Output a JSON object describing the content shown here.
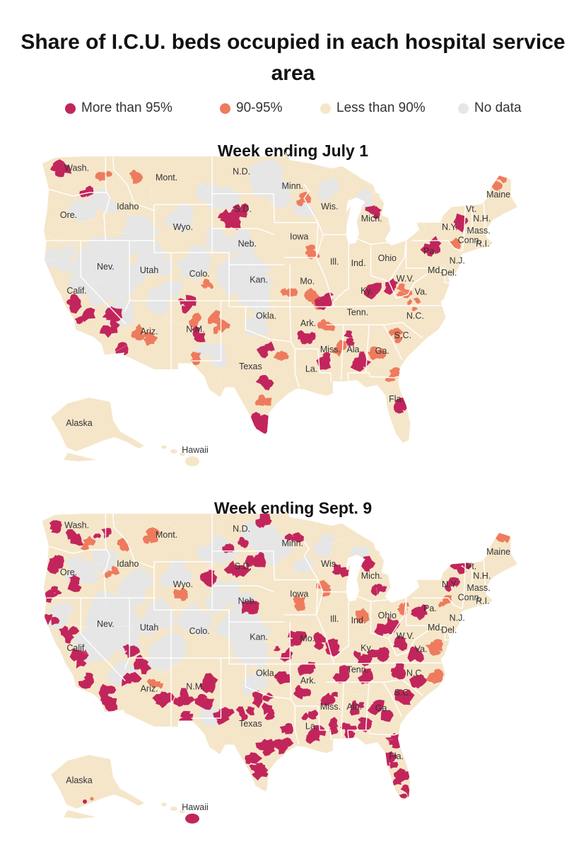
{
  "title": "Share of I.C.U. beds occupied in each hospital service area",
  "legend": [
    {
      "label": "More than 95%",
      "color": "#c2255c"
    },
    {
      "label": "90-95%",
      "color": "#ee7b5d"
    },
    {
      "label": "Less than 90%",
      "color": "#f5e6ca"
    },
    {
      "label": "No data",
      "color": "#e6e6e6"
    }
  ],
  "state_labels": [
    {
      "name": "Wash.",
      "lon": -120.5,
      "lat": 47.8
    },
    {
      "name": "Ore.",
      "lon": -121.5,
      "lat": 43.9
    },
    {
      "name": "Calif.",
      "lon": -120.5,
      "lat": 37.6
    },
    {
      "name": "Nev.",
      "lon": -117.0,
      "lat": 39.6
    },
    {
      "name": "Idaho",
      "lon": -114.3,
      "lat": 44.6
    },
    {
      "name": "Mont.",
      "lon": -109.6,
      "lat": 47.0
    },
    {
      "name": "Wyo.",
      "lon": -107.6,
      "lat": 42.9
    },
    {
      "name": "Utah",
      "lon": -111.7,
      "lat": 39.3
    },
    {
      "name": "Colo.",
      "lon": -105.6,
      "lat": 39.0
    },
    {
      "name": "Ariz.",
      "lon": -111.7,
      "lat": 34.2
    },
    {
      "name": "N.M.",
      "lon": -106.1,
      "lat": 34.4
    },
    {
      "name": "N.D.",
      "lon": -100.5,
      "lat": 47.5
    },
    {
      "name": "S.D.",
      "lon": -100.3,
      "lat": 44.4
    },
    {
      "name": "Neb.",
      "lon": -99.8,
      "lat": 41.5
    },
    {
      "name": "Kan.",
      "lon": -98.4,
      "lat": 38.5
    },
    {
      "name": "Okla.",
      "lon": -97.5,
      "lat": 35.5
    },
    {
      "name": "Texas",
      "lon": -99.4,
      "lat": 31.3
    },
    {
      "name": "Minn.",
      "lon": -94.3,
      "lat": 46.3
    },
    {
      "name": "Iowa",
      "lon": -93.5,
      "lat": 42.1
    },
    {
      "name": "Mo.",
      "lon": -92.5,
      "lat": 38.4
    },
    {
      "name": "Ark.",
      "lon": -92.4,
      "lat": 34.9
    },
    {
      "name": "La.",
      "lon": -92.0,
      "lat": 31.1
    },
    {
      "name": "Wis.",
      "lon": -89.8,
      "lat": 44.6
    },
    {
      "name": "Ill.",
      "lon": -89.2,
      "lat": 40.0
    },
    {
      "name": "Mich.",
      "lon": -84.7,
      "lat": 43.6
    },
    {
      "name": "Ind.",
      "lon": -86.3,
      "lat": 39.9
    },
    {
      "name": "Ohio",
      "lon": -82.8,
      "lat": 40.3
    },
    {
      "name": "Ky.",
      "lon": -85.3,
      "lat": 37.6
    },
    {
      "name": "Tenn.",
      "lon": -86.4,
      "lat": 35.8
    },
    {
      "name": "Miss.",
      "lon": -89.7,
      "lat": 32.7
    },
    {
      "name": "Ala.",
      "lon": -86.8,
      "lat": 32.7
    },
    {
      "name": "Ga.",
      "lon": -83.4,
      "lat": 32.6
    },
    {
      "name": "Fla.",
      "lon": -81.7,
      "lat": 28.6
    },
    {
      "name": "S.C.",
      "lon": -80.9,
      "lat": 33.9
    },
    {
      "name": "N.C.",
      "lon": -79.4,
      "lat": 35.5
    },
    {
      "name": "Va.",
      "lon": -78.7,
      "lat": 37.5
    },
    {
      "name": "W.V.",
      "lon": -80.6,
      "lat": 38.6
    },
    {
      "name": "Md.",
      "lon": -77.0,
      "lat": 39.3
    },
    {
      "name": "Del.",
      "lon": -75.3,
      "lat": 39.1
    },
    {
      "name": "Pa.",
      "lon": -77.6,
      "lat": 40.9
    },
    {
      "name": "N.J.",
      "lon": -74.3,
      "lat": 40.1
    },
    {
      "name": "N.Y.",
      "lon": -75.2,
      "lat": 42.9
    },
    {
      "name": "Conn.",
      "lon": -72.8,
      "lat": 41.8
    },
    {
      "name": "R.I.",
      "lon": -71.2,
      "lat": 41.5
    },
    {
      "name": "Mass.",
      "lon": -71.7,
      "lat": 42.6
    },
    {
      "name": "N.H.",
      "lon": -71.3,
      "lat": 43.6
    },
    {
      "name": "Vt.",
      "lon": -72.6,
      "lat": 44.4
    },
    {
      "name": "Maine",
      "lon": -69.3,
      "lat": 45.6
    },
    {
      "name": "Alaska",
      "inset": "alaska"
    },
    {
      "name": "Hawaii",
      "inset": "hawaii"
    }
  ],
  "maps": [
    {
      "heading": "Week ending July 1",
      "hotspots": [
        {
          "lon": -122.6,
          "lat": 47.9,
          "level": "high"
        },
        {
          "lon": -119.4,
          "lat": 46.2,
          "level": "high"
        },
        {
          "lon": -117.3,
          "lat": 47.2,
          "level": "mid"
        },
        {
          "lon": -113.0,
          "lat": 47.5,
          "level": "mid"
        },
        {
          "lon": -102.0,
          "lat": 44.0,
          "level": "high"
        },
        {
          "lon": -101.5,
          "lat": 43.4,
          "level": "high"
        },
        {
          "lon": -100.8,
          "lat": 44.3,
          "level": "high"
        },
        {
          "lon": -93.3,
          "lat": 45.5,
          "level": "mid"
        },
        {
          "lon": -84.6,
          "lat": 44.3,
          "level": "high"
        },
        {
          "lon": -92.0,
          "lat": 41.0,
          "level": "mid"
        },
        {
          "lon": -104.6,
          "lat": 38.6,
          "level": "mid"
        },
        {
          "lon": -120.8,
          "lat": 36.8,
          "level": "high"
        },
        {
          "lon": -119.6,
          "lat": 35.6,
          "level": "high"
        },
        {
          "lon": -116.4,
          "lat": 35.9,
          "level": "high"
        },
        {
          "lon": -116.5,
          "lat": 34.9,
          "level": "high"
        },
        {
          "lon": -114.8,
          "lat": 33.1,
          "level": "high"
        },
        {
          "lon": -113.4,
          "lat": 34.3,
          "level": "mid"
        },
        {
          "lon": -112.2,
          "lat": 33.9,
          "level": "mid"
        },
        {
          "lon": -107.4,
          "lat": 36.6,
          "level": "high"
        },
        {
          "lon": -106.4,
          "lat": 35.2,
          "level": "mid"
        },
        {
          "lon": -105.9,
          "lat": 34.2,
          "level": "high"
        },
        {
          "lon": -103.7,
          "lat": 35.6,
          "level": "mid"
        },
        {
          "lon": -103.2,
          "lat": 34.8,
          "level": "mid"
        },
        {
          "lon": -106.5,
          "lat": 32.2,
          "level": "mid"
        },
        {
          "lon": -97.5,
          "lat": 32.9,
          "level": "high"
        },
        {
          "lon": -95.8,
          "lat": 32.2,
          "level": "mid"
        },
        {
          "lon": -97.7,
          "lat": 30.2,
          "level": "high"
        },
        {
          "lon": -97.9,
          "lat": 28.4,
          "level": "mid"
        },
        {
          "lon": -98.3,
          "lat": 26.9,
          "level": "high"
        },
        {
          "lon": -97.7,
          "lat": 26.3,
          "level": "high"
        },
        {
          "lon": -94.8,
          "lat": 37.6,
          "level": "mid"
        },
        {
          "lon": -92.2,
          "lat": 37.4,
          "level": "mid"
        },
        {
          "lon": -91.3,
          "lat": 37.0,
          "level": "mid"
        },
        {
          "lon": -90.1,
          "lat": 37.2,
          "level": "high"
        },
        {
          "lon": -92.7,
          "lat": 33.9,
          "level": "high"
        },
        {
          "lon": -90.2,
          "lat": 35.0,
          "level": "mid"
        },
        {
          "lon": -88.3,
          "lat": 33.2,
          "level": "mid"
        },
        {
          "lon": -90.1,
          "lat": 32.0,
          "level": "high"
        },
        {
          "lon": -86.8,
          "lat": 33.8,
          "level": "high"
        },
        {
          "lon": -85.8,
          "lat": 32.1,
          "level": "high"
        },
        {
          "lon": -84.1,
          "lat": 32.6,
          "level": "mid"
        },
        {
          "lon": -81.9,
          "lat": 34.1,
          "level": "mid"
        },
        {
          "lon": -81.9,
          "lat": 30.9,
          "level": "mid"
        },
        {
          "lon": -80.9,
          "lat": 28.3,
          "level": "high"
        },
        {
          "lon": -84.4,
          "lat": 37.9,
          "level": "high"
        },
        {
          "lon": -82.2,
          "lat": 38.2,
          "level": "high"
        },
        {
          "lon": -80.6,
          "lat": 37.9,
          "level": "mid"
        },
        {
          "lon": -79.7,
          "lat": 36.7,
          "level": "mid"
        },
        {
          "lon": -77.4,
          "lat": 41.4,
          "level": "high"
        },
        {
          "lon": -73.3,
          "lat": 43.6,
          "level": "high"
        },
        {
          "lon": -69.3,
          "lat": 46.9,
          "level": "mid"
        },
        {
          "lon": -74.8,
          "lat": 41.6,
          "level": "mid"
        }
      ]
    },
    {
      "heading": "Week ending Sept. 9",
      "hotspots": [
        {
          "lon": -123.0,
          "lat": 47.9,
          "level": "high"
        },
        {
          "lon": -121.0,
          "lat": 47.0,
          "level": "high"
        },
        {
          "lon": -117.5,
          "lat": 47.6,
          "level": "high"
        },
        {
          "lon": -119.0,
          "lat": 46.4,
          "level": "mid"
        },
        {
          "lon": -122.7,
          "lat": 44.8,
          "level": "high"
        },
        {
          "lon": -123.3,
          "lat": 42.5,
          "level": "high"
        },
        {
          "lon": -120.6,
          "lat": 43.3,
          "level": "high"
        },
        {
          "lon": -116.4,
          "lat": 44.2,
          "level": "mid"
        },
        {
          "lon": -114.8,
          "lat": 46.4,
          "level": "mid"
        },
        {
          "lon": -111.3,
          "lat": 47.2,
          "level": "mid"
        },
        {
          "lon": -108.0,
          "lat": 42.4,
          "level": "mid"
        },
        {
          "lon": -104.3,
          "lat": 43.7,
          "level": "high"
        },
        {
          "lon": -101.5,
          "lat": 46.0,
          "level": "high"
        },
        {
          "lon": -100.2,
          "lat": 46.6,
          "level": "high"
        },
        {
          "lon": -101.0,
          "lat": 44.4,
          "level": "high"
        },
        {
          "lon": -99.0,
          "lat": 45.3,
          "level": "high"
        },
        {
          "lon": -99.5,
          "lat": 41.4,
          "level": "high"
        },
        {
          "lon": -123.7,
          "lat": 40.3,
          "level": "high"
        },
        {
          "lon": -121.4,
          "lat": 38.9,
          "level": "high"
        },
        {
          "lon": -120.5,
          "lat": 36.9,
          "level": "high"
        },
        {
          "lon": -118.9,
          "lat": 35.3,
          "level": "high"
        },
        {
          "lon": -117.0,
          "lat": 34.1,
          "level": "high"
        },
        {
          "lon": -116.5,
          "lat": 33.1,
          "level": "high"
        },
        {
          "lon": -113.7,
          "lat": 37.6,
          "level": "high"
        },
        {
          "lon": -112.7,
          "lat": 36.5,
          "level": "high"
        },
        {
          "lon": -113.9,
          "lat": 35.3,
          "level": "high"
        },
        {
          "lon": -111.0,
          "lat": 34.7,
          "level": "mid"
        },
        {
          "lon": -109.7,
          "lat": 33.7,
          "level": "high"
        },
        {
          "lon": -107.5,
          "lat": 33.7,
          "level": "high"
        },
        {
          "lon": -104.3,
          "lat": 34.8,
          "level": "high"
        },
        {
          "lon": -104.9,
          "lat": 33.4,
          "level": "high"
        },
        {
          "lon": -107.2,
          "lat": 31.9,
          "level": "high"
        },
        {
          "lon": -102.6,
          "lat": 32.3,
          "level": "high"
        },
        {
          "lon": -100.1,
          "lat": 32.5,
          "level": "high"
        },
        {
          "lon": -96.9,
          "lat": 32.4,
          "level": "high"
        },
        {
          "lon": -95.3,
          "lat": 31.3,
          "level": "high"
        },
        {
          "lon": -97.5,
          "lat": 29.6,
          "level": "high"
        },
        {
          "lon": -98.3,
          "lat": 27.4,
          "level": "high"
        },
        {
          "lon": -99.2,
          "lat": 28.3,
          "level": "high"
        },
        {
          "lon": -95.3,
          "lat": 29.8,
          "level": "high"
        },
        {
          "lon": -97.9,
          "lat": 33.6,
          "level": "high"
        },
        {
          "lon": -95.4,
          "lat": 35.4,
          "level": "high"
        },
        {
          "lon": -93.2,
          "lat": 34.2,
          "level": "high"
        },
        {
          "lon": -92.6,
          "lat": 36.0,
          "level": "high"
        },
        {
          "lon": -92.1,
          "lat": 32.2,
          "level": "high"
        },
        {
          "lon": -91.6,
          "lat": 30.6,
          "level": "high"
        },
        {
          "lon": -89.5,
          "lat": 31.2,
          "level": "high"
        },
        {
          "lon": -89.4,
          "lat": 33.7,
          "level": "high"
        },
        {
          "lon": -86.6,
          "lat": 33.0,
          "level": "high"
        },
        {
          "lon": -87.6,
          "lat": 31.0,
          "level": "high"
        },
        {
          "lon": -85.5,
          "lat": 31.4,
          "level": "high"
        },
        {
          "lon": -84.0,
          "lat": 33.2,
          "level": "high"
        },
        {
          "lon": -82.6,
          "lat": 31.9,
          "level": "high"
        },
        {
          "lon": -81.7,
          "lat": 30.1,
          "level": "high"
        },
        {
          "lon": -82.3,
          "lat": 28.5,
          "level": "high"
        },
        {
          "lon": -81.1,
          "lat": 27.1,
          "level": "high"
        },
        {
          "lon": -80.5,
          "lat": 25.9,
          "level": "high"
        },
        {
          "lon": -80.9,
          "lat": 33.8,
          "level": "high"
        },
        {
          "lon": -79.3,
          "lat": 35.1,
          "level": "high"
        },
        {
          "lon": -77.3,
          "lat": 35.6,
          "level": "mid"
        },
        {
          "lon": -81.7,
          "lat": 35.9,
          "level": "high"
        },
        {
          "lon": -85.7,
          "lat": 35.6,
          "level": "high"
        },
        {
          "lon": -88.7,
          "lat": 35.5,
          "level": "high"
        },
        {
          "lon": -86.0,
          "lat": 37.1,
          "level": "high"
        },
        {
          "lon": -83.7,
          "lat": 37.2,
          "level": "high"
        },
        {
          "lon": -80.8,
          "lat": 38.1,
          "level": "high"
        },
        {
          "lon": -78.9,
          "lat": 37.3,
          "level": "high"
        },
        {
          "lon": -77.0,
          "lat": 37.8,
          "level": "mid"
        },
        {
          "lon": -88.9,
          "lat": 37.9,
          "level": "high"
        },
        {
          "lon": -90.7,
          "lat": 38.4,
          "level": "high"
        },
        {
          "lon": -93.9,
          "lat": 38.5,
          "level": "high"
        },
        {
          "lon": -95.5,
          "lat": 37.4,
          "level": "high"
        },
        {
          "lon": -93.6,
          "lat": 41.4,
          "level": "mid"
        },
        {
          "lon": -90.5,
          "lat": 42.8,
          "level": "mid"
        },
        {
          "lon": -88.3,
          "lat": 44.4,
          "level": "high"
        },
        {
          "lon": -84.9,
          "lat": 44.8,
          "level": "high"
        },
        {
          "lon": -83.9,
          "lat": 42.9,
          "level": "high"
        },
        {
          "lon": -85.8,
          "lat": 40.6,
          "level": "mid"
        },
        {
          "lon": -82.9,
          "lat": 39.6,
          "level": "high"
        },
        {
          "lon": -81.0,
          "lat": 41.2,
          "level": "mid"
        },
        {
          "lon": -78.8,
          "lat": 41.0,
          "level": "high"
        },
        {
          "lon": -75.9,
          "lat": 41.6,
          "level": "mid"
        },
        {
          "lon": -75.5,
          "lat": 43.2,
          "level": "high"
        },
        {
          "lon": -73.5,
          "lat": 44.5,
          "level": "high"
        },
        {
          "lon": -69.0,
          "lat": 46.8,
          "level": "mid"
        },
        {
          "lon": -94.1,
          "lat": 46.8,
          "level": "high"
        },
        {
          "lon": -97.9,
          "lat": 48.6,
          "level": "high"
        }
      ]
    }
  ]
}
